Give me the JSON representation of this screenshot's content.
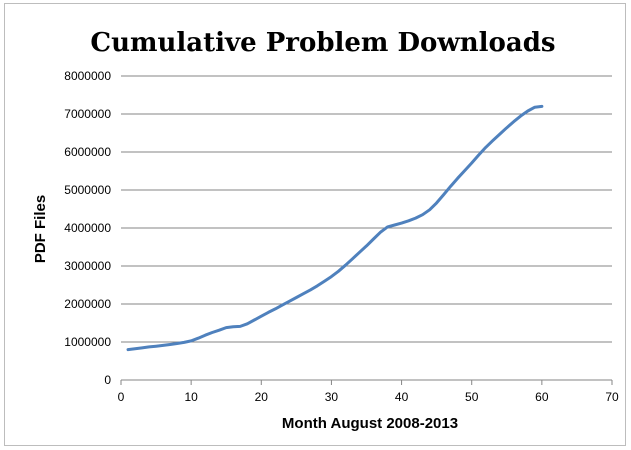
{
  "chart_data": {
    "type": "line",
    "title": "Cumulative Problem Downloads",
    "xlabel": "Month August 2008-2013",
    "ylabel": "PDF Files",
    "xlim": [
      0,
      70
    ],
    "ylim": [
      0,
      8000000
    ],
    "x_ticks": [
      0,
      10,
      20,
      30,
      40,
      50,
      60,
      70
    ],
    "y_ticks": [
      0,
      1000000,
      2000000,
      3000000,
      4000000,
      5000000,
      6000000,
      7000000,
      8000000
    ],
    "grid": "horizontal",
    "legend": "none",
    "series_color": "#4f81bd",
    "grid_color": "#868686",
    "series": [
      {
        "x": [
          1,
          2,
          3,
          4,
          5,
          6,
          7,
          8,
          9,
          10,
          11,
          12,
          13,
          14,
          15,
          16,
          17,
          18,
          19,
          20,
          21,
          22,
          23,
          24,
          25,
          26,
          27,
          28,
          29,
          30,
          31,
          32,
          33,
          34,
          35,
          36,
          37,
          38,
          39,
          40,
          41,
          42,
          43,
          44,
          45,
          46,
          47,
          48,
          49,
          50,
          51,
          52,
          53,
          54,
          55,
          56,
          57,
          58,
          59,
          60
        ],
        "values": [
          800000,
          820000,
          845000,
          870000,
          890000,
          910000,
          935000,
          960000,
          990000,
          1030000,
          1100000,
          1180000,
          1250000,
          1310000,
          1380000,
          1400000,
          1410000,
          1480000,
          1580000,
          1680000,
          1780000,
          1870000,
          1970000,
          2070000,
          2170000,
          2270000,
          2370000,
          2480000,
          2600000,
          2720000,
          2860000,
          3020000,
          3190000,
          3360000,
          3530000,
          3710000,
          3890000,
          4030000,
          4080000,
          4130000,
          4190000,
          4260000,
          4350000,
          4480000,
          4660000,
          4880000,
          5100000,
          5310000,
          5510000,
          5710000,
          5920000,
          6120000,
          6300000,
          6470000,
          6640000,
          6800000,
          6950000,
          7080000,
          7180000,
          7200000
        ]
      }
    ]
  }
}
